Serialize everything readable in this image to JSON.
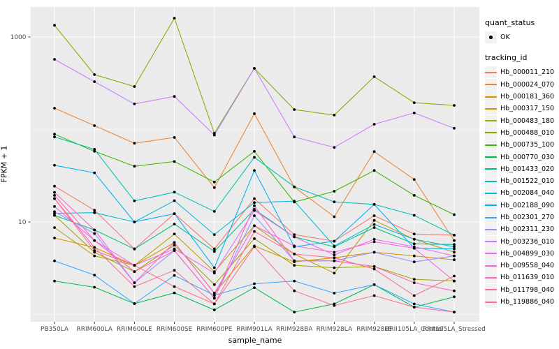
{
  "legend": {
    "quant_status_title": "quant_status",
    "quant_status_items": [
      {
        "label": "OK",
        "marker": "black-point"
      }
    ],
    "tracking_id_title": "tracking_id"
  },
  "style": {
    "panel_fill": "#EBEBEB",
    "grid_color": "#FFFFFF",
    "tick_text_color": "#4D4D4D",
    "point_color": "#000000",
    "legend_key_fill": "#F2F2F2"
  },
  "chart_data": {
    "type": "line",
    "title": "",
    "xlabel": "sample_name",
    "ylabel": "FPKM + 1",
    "y_scale": "log10",
    "ylim": [
      0.83,
      2100
    ],
    "y_major_ticks": [
      {
        "value": 10,
        "label": "10"
      },
      {
        "value": 1000,
        "label": "1000"
      }
    ],
    "y_minor_gridlines": [
      1,
      100
    ],
    "grid": "on",
    "legend_position": "right",
    "marker": "solid-circle",
    "categories": [
      "PB350LA",
      "RRIM600LA",
      "RRIM600LE",
      "RRIM600SE",
      "RRIM600PE",
      "RRIM901LA",
      "RRIM928BA",
      "RRIM928LA",
      "RRIM928LE",
      "RRII105LA_Control",
      "RRII105LA_Stressed"
    ],
    "series": [
      {
        "tracking_id": "Hb_000011_210",
        "quant_status": "OK",
        "color": "#F8766D",
        "values": [
          24.4,
          13.4,
          5.1,
          12.3,
          5.1,
          17.9,
          7.3,
          6.2,
          11.7,
          7.4,
          7.2
        ]
      },
      {
        "tracking_id": "Hb_000024_070",
        "quant_status": "OK",
        "color": "#EA8331",
        "values": [
          170,
          110,
          71,
          82,
          23.5,
          148,
          23.9,
          11.4,
          57.6,
          28.8,
          6.3
        ]
      },
      {
        "tracking_id": "Hb_000181_360",
        "quant_status": "OK",
        "color": "#D89000",
        "values": [
          6.7,
          5.3,
          3.4,
          6.0,
          1.7,
          5.5,
          3.7,
          4.1,
          4.7,
          4.3,
          3.9
        ]
      },
      {
        "tracking_id": "Hb_000317_150",
        "quant_status": "OK",
        "color": "#C09B00",
        "values": [
          8.7,
          4.3,
          3.4,
          7.4,
          2.9,
          9.1,
          4.5,
          2.8,
          10.4,
          6.5,
          4.7
        ]
      },
      {
        "tracking_id": "Hb_000483_180",
        "quant_status": "OK",
        "color": "#A3A500",
        "values": [
          11.8,
          4.7,
          2.9,
          5.6,
          2.1,
          6.6,
          3.4,
          3.2,
          3.3,
          2.4,
          2.3
        ]
      },
      {
        "tracking_id": "Hb_000488_010",
        "quant_status": "OK",
        "color": "#7CAE00",
        "values": [
          1340,
          392,
          291,
          1600,
          91,
          458,
          164,
          143,
          372,
          195,
          182
        ]
      },
      {
        "tracking_id": "Hb_000735_100",
        "quant_status": "OK",
        "color": "#39B600",
        "values": [
          89,
          58,
          40,
          45,
          27,
          58,
          16.4,
          21.5,
          36,
          19.4,
          12.0
        ]
      },
      {
        "tracking_id": "Hb_000770_030",
        "quant_status": "OK",
        "color": "#00BB4E",
        "values": [
          2.3,
          1.97,
          1.31,
          1.71,
          1.12,
          1.95,
          1.06,
          1.3,
          2.1,
          1.2,
          1.55
        ]
      },
      {
        "tracking_id": "Hb_001433_020",
        "quant_status": "OK",
        "color": "#00C087",
        "values": [
          11.8,
          8.2,
          5.1,
          9.5,
          4.8,
          13.7,
          6.9,
          5.4,
          8.7,
          5.8,
          5.7
        ]
      },
      {
        "tracking_id": "Hb_001522_010",
        "quant_status": "OK",
        "color": "#00C0AF",
        "values": [
          83,
          61,
          16.9,
          21,
          13,
          50,
          24,
          16.5,
          15.5,
          11.8,
          7.2
        ]
      },
      {
        "tracking_id": "Hb_002084_040",
        "quant_status": "OK",
        "color": "#00BCD8",
        "values": [
          12.4,
          12.6,
          10,
          17,
          7.3,
          16.2,
          16.8,
          5.5,
          9.4,
          6.5,
          5.4
        ]
      },
      {
        "tracking_id": "Hb_002188_090",
        "quant_status": "OK",
        "color": "#00B0F6",
        "values": [
          41,
          34,
          10,
          12.3,
          3.2,
          36,
          5.4,
          6.2,
          15.5,
          5.2,
          5.1
        ]
      },
      {
        "tracking_id": "Hb_002301_270",
        "quant_status": "OK",
        "color": "#35A2FF",
        "values": [
          3.8,
          2.66,
          1.31,
          2.64,
          1.61,
          2.15,
          2.3,
          1.7,
          2.1,
          1.3,
          1.06
        ]
      },
      {
        "tracking_id": "Hb_002311_230",
        "quant_status": "OK",
        "color": "#9590FF",
        "values": [
          12.9,
          7.5,
          2.2,
          4.9,
          1.5,
          11.7,
          3.8,
          3.8,
          4.7,
          3.7,
          4.3
        ]
      },
      {
        "tracking_id": "Hb_003236_010",
        "quant_status": "OK",
        "color": "#C77CFF",
        "values": [
          573,
          329,
          189,
          228,
          87,
          458,
          83,
          64,
          114,
          151,
          103
        ]
      },
      {
        "tracking_id": "Hb_004899_030",
        "quant_status": "OK",
        "color": "#E76BF3",
        "values": [
          14.7,
          6.3,
          3.4,
          5.1,
          2.8,
          13.3,
          6.9,
          4.4,
          6.5,
          5.4,
          4.3
        ]
      },
      {
        "tracking_id": "Hb_009558_040",
        "quant_status": "OK",
        "color": "#FA62DB",
        "values": [
          20.9,
          8.2,
          2.2,
          6.0,
          1.7,
          9.1,
          5.5,
          4.7,
          6.1,
          5.2,
          2.3
        ]
      },
      {
        "tracking_id": "Hb_011639_010",
        "quant_status": "OK",
        "color": "#FF62BC",
        "values": [
          19.4,
          6.3,
          2.9,
          4.9,
          1.5,
          15.0,
          3.8,
          3.8,
          3.3,
          2.2,
          1.8
        ]
      },
      {
        "tracking_id": "Hb_011798_040",
        "quant_status": "OK",
        "color": "#FF6A98",
        "values": [
          17.9,
          5.3,
          2.0,
          3.0,
          1.3,
          7.9,
          4.5,
          4.1,
          3.1,
          1.6,
          2.6
        ]
      },
      {
        "tracking_id": "Hb_119886_040",
        "quant_status": "OK",
        "color": "#FF6C91",
        "values": [
          17.9,
          4.9,
          3.4,
          2.0,
          1.3,
          5.4,
          1.8,
          1.25,
          1.6,
          1.2,
          1.06
        ]
      }
    ]
  }
}
